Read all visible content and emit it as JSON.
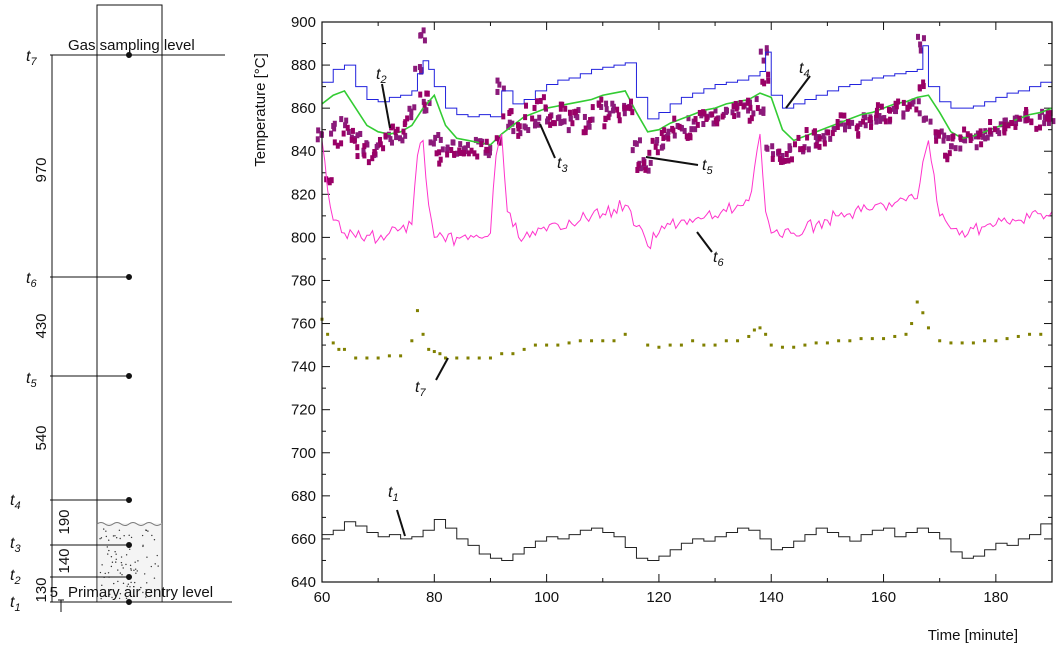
{
  "schematic": {
    "top_label": "Gas sampling level",
    "bottom_label": "Primary air entry level",
    "small_dim": "5",
    "dimensions": [
      "970",
      "430",
      "540",
      "190",
      "140",
      "130"
    ],
    "sensors": [
      {
        "label": "t",
        "sub": "7"
      },
      {
        "label": "t",
        "sub": "6"
      },
      {
        "label": "t",
        "sub": "5"
      },
      {
        "label": "t",
        "sub": "4"
      },
      {
        "label": "t",
        "sub": "3"
      },
      {
        "label": "t",
        "sub": "2"
      },
      {
        "label": "t",
        "sub": "1"
      }
    ]
  },
  "chart_data": {
    "type": "line",
    "title": "",
    "xlabel": "Time [minute]",
    "ylabel": "Temperature [°C]",
    "xlim": [
      60,
      190
    ],
    "ylim": [
      640,
      900
    ],
    "xticks": [
      60,
      80,
      100,
      120,
      140,
      160,
      180
    ],
    "yticks": [
      640,
      660,
      680,
      700,
      720,
      740,
      760,
      780,
      800,
      820,
      840,
      860,
      880,
      900
    ],
    "grid": false,
    "series": [
      {
        "name": "t1",
        "color": "#222222",
        "style": "step",
        "x": [
          60,
          62,
          64,
          66,
          68,
          70,
          72,
          74,
          76,
          78,
          80,
          82,
          84,
          86,
          88,
          90,
          92,
          94,
          96,
          98,
          100,
          102,
          104,
          106,
          108,
          110,
          112,
          114,
          116,
          118,
          120,
          122,
          124,
          126,
          128,
          130,
          132,
          134,
          136,
          138,
          140,
          142,
          144,
          146,
          148,
          150,
          152,
          154,
          156,
          158,
          160,
          162,
          164,
          166,
          168,
          170,
          172,
          174,
          176,
          178,
          180,
          182,
          184,
          186,
          188,
          190
        ],
        "y": [
          662,
          664,
          668,
          666,
          663,
          661,
          662,
          660,
          661,
          664,
          669,
          665,
          660,
          657,
          653,
          651,
          650,
          653,
          656,
          659,
          661,
          660,
          662,
          664,
          665,
          663,
          661,
          656,
          651,
          650,
          652,
          655,
          658,
          660,
          659,
          661,
          663,
          665,
          664,
          660,
          655,
          656,
          659,
          662,
          665,
          663,
          661,
          659,
          662,
          664,
          665,
          661,
          663,
          665,
          663,
          660,
          654,
          651,
          652,
          655,
          658,
          657,
          660,
          662,
          667,
          664
        ]
      },
      {
        "name": "t2",
        "color": "#8B1A7A",
        "style": "blocks",
        "x": [
          60,
          62,
          64,
          66,
          68,
          70,
          72,
          74,
          76,
          77,
          78,
          79,
          80,
          82,
          84,
          86,
          88,
          90,
          92,
          94,
          96,
          98,
          100,
          102,
          104,
          106,
          108,
          110,
          112,
          114,
          116,
          117,
          118,
          120,
          122,
          124,
          126,
          128,
          130,
          132,
          134,
          136,
          138,
          139,
          140,
          142,
          144,
          146,
          148,
          150,
          152,
          154,
          156,
          158,
          160,
          162,
          164,
          166,
          167,
          168,
          170,
          172,
          174,
          176,
          178,
          180,
          182,
          184,
          186,
          188,
          190
        ],
        "y": [
          848,
          850,
          852,
          846,
          842,
          841,
          845,
          846,
          858,
          880,
          893,
          862,
          846,
          843,
          841,
          840,
          842,
          841,
          870,
          852,
          851,
          855,
          857,
          855,
          853,
          856,
          854,
          860,
          859,
          858,
          842,
          835,
          834,
          843,
          848,
          851,
          853,
          855,
          856,
          857,
          858,
          860,
          861,
          885,
          840,
          838,
          840,
          842,
          845,
          847,
          850,
          852,
          854,
          855,
          856,
          857,
          859,
          860,
          890,
          855,
          846,
          844,
          844,
          845,
          848,
          850,
          852,
          853,
          855,
          856,
          855
        ]
      },
      {
        "name": "t3",
        "color": "#33cc33",
        "style": "line",
        "x": [
          60,
          62,
          64,
          66,
          68,
          70,
          72,
          74,
          76,
          78,
          80,
          82,
          84,
          86,
          88,
          90,
          92,
          94,
          96,
          98,
          100,
          102,
          104,
          106,
          108,
          110,
          112,
          114,
          116,
          118,
          120,
          122,
          124,
          126,
          128,
          130,
          132,
          134,
          136,
          138,
          140,
          142,
          144,
          146,
          148,
          150,
          152,
          154,
          156,
          158,
          160,
          162,
          164,
          166,
          168,
          170,
          172,
          174,
          176,
          178,
          180,
          182,
          184,
          186,
          188,
          190
        ],
        "y": [
          862,
          866,
          868,
          860,
          852,
          849,
          848,
          849,
          852,
          860,
          866,
          852,
          846,
          845,
          844,
          843,
          848,
          852,
          856,
          858,
          860,
          861,
          862,
          863,
          864,
          866,
          867,
          868,
          858,
          849,
          850,
          853,
          855,
          857,
          859,
          860,
          862,
          863,
          864,
          867,
          865,
          850,
          845,
          847,
          849,
          851,
          853,
          855,
          857,
          858,
          860,
          862,
          863,
          865,
          866,
          858,
          849,
          846,
          847,
          849,
          851,
          853,
          855,
          857,
          858,
          860
        ]
      },
      {
        "name": "t4",
        "color": "#2222dd",
        "style": "step",
        "x": [
          60,
          62,
          64,
          66,
          68,
          70,
          72,
          74,
          76,
          77,
          78,
          79,
          80,
          82,
          84,
          86,
          88,
          90,
          92,
          94,
          96,
          98,
          100,
          102,
          104,
          106,
          108,
          110,
          112,
          114,
          116,
          118,
          120,
          122,
          124,
          126,
          128,
          130,
          132,
          134,
          136,
          138,
          139,
          140,
          142,
          144,
          146,
          148,
          150,
          152,
          154,
          156,
          158,
          160,
          162,
          164,
          166,
          167,
          168,
          170,
          172,
          174,
          176,
          178,
          180,
          182,
          184,
          186,
          188,
          190
        ],
        "y": [
          872,
          878,
          880,
          870,
          864,
          863,
          865,
          866,
          868,
          876,
          882,
          878,
          870,
          860,
          857,
          856,
          857,
          856,
          868,
          862,
          864,
          868,
          871,
          873,
          874,
          876,
          878,
          879,
          880,
          881,
          865,
          855,
          858,
          862,
          865,
          867,
          869,
          871,
          872,
          873,
          875,
          877,
          886,
          866,
          860,
          862,
          864,
          866,
          868,
          870,
          871,
          873,
          874,
          875,
          876,
          877,
          878,
          889,
          870,
          863,
          860,
          860,
          861,
          863,
          865,
          867,
          868,
          870,
          872,
          874
        ]
      },
      {
        "name": "t5",
        "color": "#990066",
        "style": "blocks",
        "x": [
          61,
          63,
          65,
          67,
          69,
          71,
          73,
          75,
          78,
          81,
          83,
          85,
          87,
          89,
          91,
          93,
          95,
          97,
          99,
          101,
          103,
          105,
          107,
          109,
          111,
          113,
          115,
          117,
          119,
          121,
          123,
          125,
          127,
          129,
          131,
          133,
          135,
          137,
          139,
          141,
          143,
          145,
          147,
          149,
          151,
          153,
          155,
          157,
          159,
          161,
          163,
          165,
          167,
          169,
          171,
          173,
          175,
          177,
          179,
          181,
          183,
          185,
          187,
          189
        ],
        "y": [
          828,
          845,
          848,
          840,
          837,
          844,
          849,
          852,
          864,
          837,
          840,
          842,
          838,
          842,
          844,
          858,
          850,
          858,
          862,
          853,
          860,
          856,
          852,
          863,
          854,
          857,
          861,
          832,
          842,
          848,
          852,
          849,
          855,
          858,
          853,
          859,
          863,
          857,
          874,
          838,
          836,
          843,
          847,
          844,
          851,
          855,
          849,
          853,
          859,
          856,
          861,
          858,
          872,
          847,
          838,
          844,
          848,
          846,
          851,
          849,
          854,
          856,
          852,
          858
        ]
      },
      {
        "name": "t6",
        "color": "#ff33cc",
        "style": "noisy",
        "x": [
          60,
          61,
          62,
          64,
          66,
          68,
          70,
          72,
          74,
          76,
          77,
          78,
          79,
          80,
          82,
          84,
          86,
          88,
          90,
          91,
          92,
          93,
          94,
          96,
          98,
          100,
          102,
          104,
          106,
          108,
          110,
          112,
          114,
          116,
          118,
          120,
          122,
          124,
          126,
          128,
          130,
          132,
          134,
          136,
          137,
          138,
          139,
          140,
          142,
          144,
          146,
          148,
          150,
          152,
          154,
          156,
          158,
          160,
          162,
          164,
          166,
          167,
          168,
          170,
          172,
          174,
          176,
          178,
          180,
          182,
          184,
          186,
          188,
          190
        ],
        "y": [
          845,
          822,
          808,
          802,
          800,
          801,
          799,
          802,
          804,
          806,
          838,
          845,
          815,
          800,
          798,
          800,
          799,
          800,
          802,
          838,
          848,
          812,
          805,
          800,
          801,
          803,
          806,
          808,
          808,
          810,
          811,
          813,
          815,
          805,
          796,
          802,
          806,
          808,
          807,
          809,
          810,
          812,
          815,
          817,
          832,
          848,
          812,
          802,
          800,
          802,
          804,
          806,
          808,
          810,
          811,
          812,
          813,
          815,
          816,
          817,
          818,
          835,
          845,
          810,
          804,
          803,
          804,
          805,
          806,
          807,
          808,
          809,
          811,
          812
        ]
      },
      {
        "name": "t7",
        "color": "#808000",
        "style": "dots",
        "x": [
          60,
          61,
          62,
          63,
          64,
          66,
          68,
          70,
          72,
          74,
          76,
          77,
          78,
          79,
          80,
          81,
          82,
          84,
          86,
          88,
          90,
          92,
          94,
          96,
          98,
          100,
          102,
          104,
          106,
          108,
          110,
          112,
          114,
          118,
          120,
          122,
          124,
          126,
          128,
          130,
          132,
          134,
          136,
          137,
          138,
          139,
          140,
          142,
          144,
          146,
          148,
          150,
          152,
          154,
          156,
          158,
          160,
          162,
          164,
          165,
          166,
          167,
          168,
          170,
          172,
          174,
          176,
          178,
          180,
          182,
          184,
          186,
          188
        ],
        "y": [
          762,
          755,
          751,
          748,
          748,
          744,
          744,
          744,
          745,
          745,
          752,
          766,
          755,
          748,
          747,
          746,
          744,
          744,
          744,
          744,
          744,
          746,
          746,
          748,
          750,
          750,
          750,
          751,
          752,
          752,
          752,
          752,
          755,
          750,
          749,
          750,
          750,
          752,
          750,
          750,
          752,
          752,
          754,
          757,
          758,
          755,
          750,
          749,
          749,
          750,
          751,
          751,
          752,
          752,
          753,
          753,
          753,
          754,
          755,
          760,
          770,
          765,
          758,
          752,
          751,
          751,
          751,
          752,
          752,
          753,
          754,
          755,
          755
        ]
      }
    ],
    "annotations": [
      {
        "label": "t",
        "sub": "2"
      },
      {
        "label": "t",
        "sub": "3"
      },
      {
        "label": "t",
        "sub": "5"
      },
      {
        "label": "t",
        "sub": "4"
      },
      {
        "label": "t",
        "sub": "6"
      },
      {
        "label": "t",
        "sub": "7"
      },
      {
        "label": "t",
        "sub": "1"
      }
    ]
  }
}
